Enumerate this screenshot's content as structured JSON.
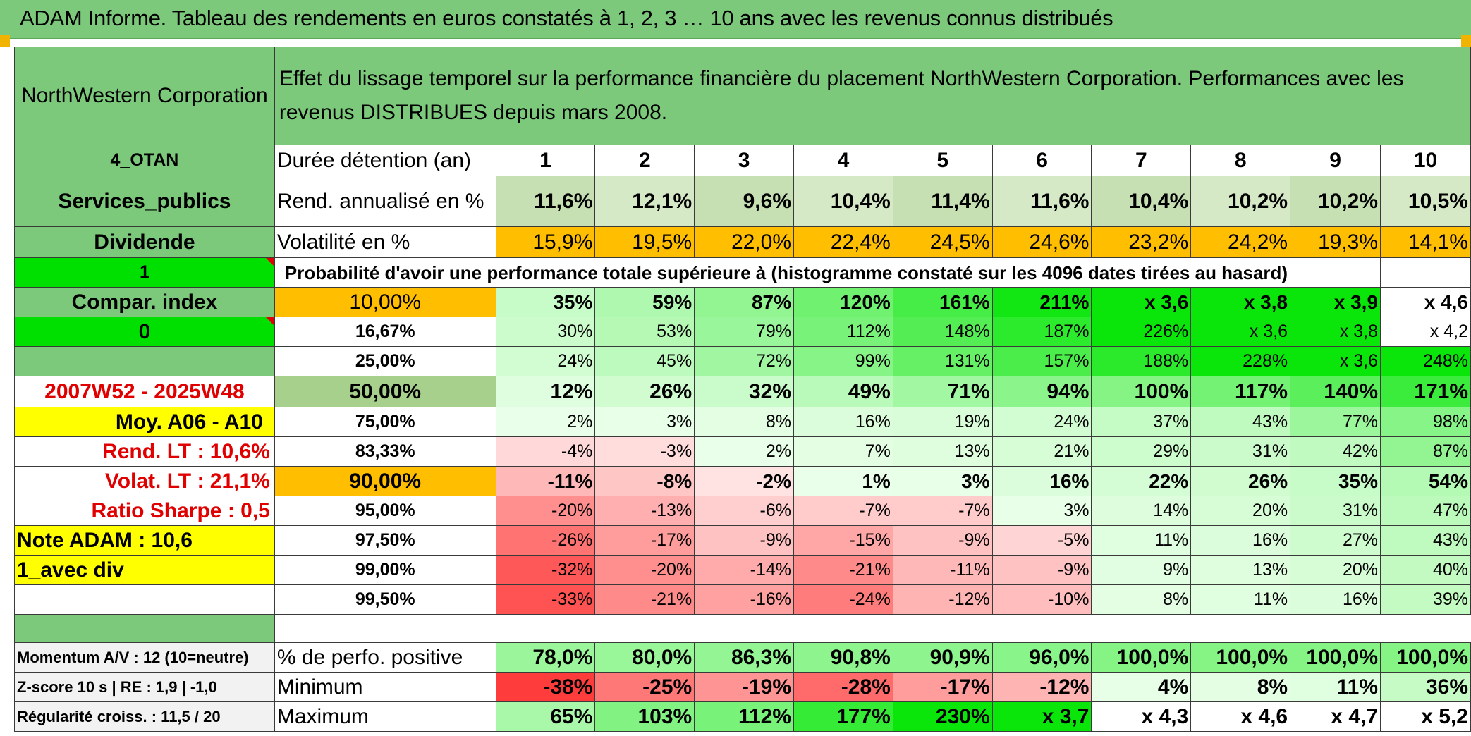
{
  "title": "ADAM Informe. Tableau des rendements en euros constatés à 1, 2, 3 … 10 ans avec les revenus connus distribués",
  "company": "NorthWestern Corporation",
  "description": "Effet du lissage temporel sur la performance financière du placement NorthWestern Corporation. Performances avec les revenus DISTRIBUES depuis mars 2008.",
  "side": {
    "code": "4_OTAN",
    "sector": "Services_publics",
    "type": "Dividende",
    "flag1": "1",
    "compar": "Compar. index",
    "flag0": "0",
    "period": "2007W52 - 2025W48",
    "moy": "Moy. A06 - A10",
    "rend_lt": "Rend. LT :   10,6%",
    "volat_lt": "Volat. LT :   21,1%",
    "sharpe": "Ratio Sharpe :    0,5",
    "note": "Note ADAM : 10,6",
    "avec_div": "1_avec div",
    "momentum": "Momentum A/V : 12 (10=neutre)",
    "zscore": "Z-score 10 s | RE : 1,9 | -1,0",
    "regularite": "Régularité croiss. : 11,5 / 20"
  },
  "years_label": "Durée détention (an)",
  "years": [
    "1",
    "2",
    "3",
    "4",
    "5",
    "6",
    "7",
    "8",
    "9",
    "10"
  ],
  "rend_label": "Rend. annualisé en %",
  "rend": [
    "11,6%",
    "12,1%",
    "9,6%",
    "10,4%",
    "11,4%",
    "11,6%",
    "10,4%",
    "10,2%",
    "10,2%",
    "10,5%"
  ],
  "volat_label": "Volatilité en %",
  "volat": [
    "15,9%",
    "19,5%",
    "22,0%",
    "22,4%",
    "24,5%",
    "24,6%",
    "23,2%",
    "24,2%",
    "19,3%",
    "14,1%"
  ],
  "prob_label": "Probabilité d'avoir une performance totale supérieure à (histogramme constaté sur les 4096 dates tirées au hasard)",
  "quantile_rows": [
    {
      "pct": "10,00%",
      "values": [
        "35%",
        "59%",
        "87%",
        "120%",
        "161%",
        "211%",
        "x 3,6",
        "x 3,8",
        "x 3,9",
        "x 4,6"
      ]
    },
    {
      "pct": "16,67%",
      "values": [
        "30%",
        "53%",
        "79%",
        "112%",
        "148%",
        "187%",
        "226%",
        "x 3,6",
        "x 3,8",
        "x 4,2"
      ]
    },
    {
      "pct": "25,00%",
      "values": [
        "24%",
        "45%",
        "72%",
        "99%",
        "131%",
        "157%",
        "188%",
        "228%",
        "x 3,6",
        "248%"
      ]
    },
    {
      "pct": "50,00%",
      "values": [
        "12%",
        "26%",
        "32%",
        "49%",
        "71%",
        "94%",
        "100%",
        "117%",
        "140%",
        "171%"
      ]
    },
    {
      "pct": "75,00%",
      "values": [
        "2%",
        "3%",
        "8%",
        "16%",
        "19%",
        "24%",
        "37%",
        "43%",
        "77%",
        "98%"
      ]
    },
    {
      "pct": "83,33%",
      "values": [
        "-4%",
        "-3%",
        "2%",
        "7%",
        "13%",
        "21%",
        "29%",
        "31%",
        "42%",
        "87%"
      ]
    },
    {
      "pct": "90,00%",
      "values": [
        "-11%",
        "-8%",
        "-2%",
        "1%",
        "3%",
        "16%",
        "22%",
        "26%",
        "35%",
        "54%"
      ]
    },
    {
      "pct": "95,00%",
      "values": [
        "-20%",
        "-13%",
        "-6%",
        "-7%",
        "-7%",
        "3%",
        "14%",
        "20%",
        "31%",
        "47%"
      ]
    },
    {
      "pct": "97,50%",
      "values": [
        "-26%",
        "-17%",
        "-9%",
        "-15%",
        "-9%",
        "-5%",
        "11%",
        "16%",
        "27%",
        "43%"
      ]
    },
    {
      "pct": "99,00%",
      "values": [
        "-32%",
        "-20%",
        "-14%",
        "-21%",
        "-11%",
        "-9%",
        "9%",
        "13%",
        "20%",
        "40%"
      ]
    },
    {
      "pct": "99,50%",
      "values": [
        "-33%",
        "-21%",
        "-16%",
        "-24%",
        "-12%",
        "-10%",
        "8%",
        "11%",
        "16%",
        "39%"
      ]
    }
  ],
  "stats": [
    {
      "label": "% de perfo. positive",
      "values": [
        "78,0%",
        "80,0%",
        "86,3%",
        "90,8%",
        "90,9%",
        "96,0%",
        "100,0%",
        "100,0%",
        "100,0%",
        "100,0%"
      ]
    },
    {
      "label": "Minimum",
      "values": [
        "-38%",
        "-25%",
        "-19%",
        "-28%",
        "-17%",
        "-12%",
        "4%",
        "8%",
        "11%",
        "36%"
      ]
    },
    {
      "label": "Maximum",
      "values": [
        "65%",
        "103%",
        "112%",
        "177%",
        "230%",
        "x 3,7",
        "x 4,3",
        "x 4,6",
        "x 4,7",
        "x 5,2"
      ]
    }
  ],
  "colors": {
    "header_green": "#7cc97c",
    "bright_green": "#00e000",
    "orange": "#ffbf00",
    "yellow": "#ffff00",
    "red_text": "#e00000"
  }
}
